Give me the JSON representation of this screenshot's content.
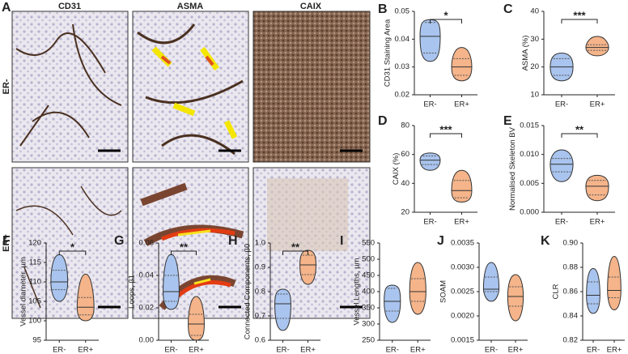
{
  "image_panel": {
    "panel": "A",
    "columns": [
      "CD31",
      "ASMA",
      "CAIX"
    ],
    "rows": [
      "ER-",
      "ER+"
    ]
  },
  "chart_data": [
    {
      "type": "violin",
      "panel": "B",
      "y_label": "CD31 Staining Area",
      "categories": [
        "ER-",
        "ER+"
      ],
      "significance": "*",
      "ylim": [
        0.02,
        0.05
      ],
      "yticks": [
        0.02,
        0.03,
        0.04,
        0.05
      ],
      "series": [
        {
          "name": "ER-",
          "color": "#a9c4ee",
          "min": 0.032,
          "q1": 0.035,
          "median": 0.041,
          "q3": 0.046,
          "max": 0.047
        },
        {
          "name": "ER+",
          "color": "#f5b48a",
          "min": 0.025,
          "q1": 0.027,
          "median": 0.03,
          "q3": 0.033,
          "max": 0.037
        }
      ]
    },
    {
      "type": "violin",
      "panel": "C",
      "y_label": "ASMA (%)",
      "categories": [
        "ER-",
        "ER+"
      ],
      "significance": "***",
      "ylim": [
        10,
        40
      ],
      "yticks": [
        10,
        20,
        30,
        40
      ],
      "series": [
        {
          "name": "ER-",
          "color": "#a9c4ee",
          "min": 15,
          "q1": 17,
          "median": 20,
          "q3": 23,
          "max": 25
        },
        {
          "name": "ER+",
          "color": "#f5b48a",
          "min": 24,
          "q1": 26,
          "median": 27,
          "q3": 28,
          "max": 31
        }
      ]
    },
    {
      "type": "violin",
      "panel": "D",
      "y_label": "CAIX (%)",
      "categories": [
        "ER-",
        "ER+"
      ],
      "significance": "***",
      "ylim": [
        20,
        80
      ],
      "yticks": [
        20,
        40,
        60,
        80
      ],
      "series": [
        {
          "name": "ER-",
          "color": "#a9c4ee",
          "min": 49,
          "q1": 53,
          "median": 56,
          "q3": 59,
          "max": 61
        },
        {
          "name": "ER+",
          "color": "#f5b48a",
          "min": 27,
          "q1": 30,
          "median": 35,
          "q3": 42,
          "max": 49
        }
      ]
    },
    {
      "type": "violin",
      "panel": "E",
      "y_label": "Normalised Skeleton BV",
      "categories": [
        "ER-",
        "ER+"
      ],
      "significance": "**",
      "ylim": [
        0,
        0.015
      ],
      "yticks": [
        {
          "value": 0,
          "label": "0.000"
        },
        0.005,
        {
          "value": 0.01,
          "label": "0.010"
        },
        0.015
      ],
      "series": [
        {
          "name": "ER-",
          "color": "#a9c4ee",
          "min": 0.0053,
          "q1": 0.007,
          "median": 0.0083,
          "q3": 0.0093,
          "max": 0.0108
        },
        {
          "name": "ER+",
          "color": "#f5b48a",
          "min": 0.002,
          "q1": 0.003,
          "median": 0.0045,
          "q3": 0.0055,
          "max": 0.0064
        }
      ]
    },
    {
      "type": "violin",
      "panel": "F",
      "y_label": "Vessel diameter, µm",
      "categories": [
        "ER-",
        "ER+"
      ],
      "significance": "*",
      "ylim": [
        95,
        120
      ],
      "yticks": [
        95,
        100,
        105,
        110,
        115,
        120
      ],
      "series": [
        {
          "name": "ER-",
          "color": "#a9c4ee",
          "min": 105,
          "q1": 108,
          "median": 110,
          "q3": 113,
          "max": 117
        },
        {
          "name": "ER+",
          "color": "#f5b48a",
          "min": 100,
          "q1": 101.5,
          "median": 103.5,
          "q3": 106,
          "max": 112
        }
      ]
    },
    {
      "type": "violin",
      "panel": "G",
      "y_label": "Loops, β1",
      "categories": [
        "ER-",
        "ER+"
      ],
      "significance": "**",
      "ylim": [
        0,
        0.06
      ],
      "yticks": [
        {
          "value": 0,
          "label": "0.00"
        },
        0.02,
        0.04,
        0.06
      ],
      "series": [
        {
          "name": "ER-",
          "color": "#a9c4ee",
          "min": 0.019,
          "q1": 0.024,
          "median": 0.03,
          "q3": 0.04,
          "max": 0.053
        },
        {
          "name": "ER+",
          "color": "#f5b48a",
          "min": 0,
          "q1": 0.003,
          "median": 0.01,
          "q3": 0.016,
          "max": 0.027
        }
      ]
    },
    {
      "type": "violin",
      "panel": "H",
      "y_label": "Connected Components, β0",
      "categories": [
        "ER-",
        "ER+"
      ],
      "significance": "**",
      "ylim": [
        0.6,
        1.0
      ],
      "yticks": [
        0.6,
        0.7,
        0.8,
        0.9,
        {
          "value": 1,
          "label": "1.0"
        }
      ],
      "series": [
        {
          "name": "ER-",
          "color": "#a9c4ee",
          "min": 0.64,
          "q1": 0.69,
          "median": 0.75,
          "q3": 0.79,
          "max": 0.81
        },
        {
          "name": "ER+",
          "color": "#f5b48a",
          "min": 0.83,
          "q1": 0.87,
          "median": 0.91,
          "q3": 0.95,
          "max": 0.97
        }
      ]
    },
    {
      "type": "violin",
      "panel": "I",
      "y_label": "Vessel Lengths, µm",
      "categories": [
        "ER-",
        "ER+"
      ],
      "ylim": [
        250,
        550
      ],
      "yticks": [
        250,
        300,
        350,
        400,
        450,
        500,
        550
      ],
      "series": [
        {
          "name": "ER-",
          "color": "#a9c4ee",
          "min": 305,
          "q1": 340,
          "median": 370,
          "q3": 410,
          "max": 420
        },
        {
          "name": "ER+",
          "color": "#f5b48a",
          "min": 330,
          "q1": 370,
          "median": 400,
          "q3": 440,
          "max": 490
        }
      ]
    },
    {
      "type": "violin",
      "panel": "J",
      "y_label": "SOAM",
      "categories": [
        "ER-",
        "ER+"
      ],
      "ylim": [
        0.0015,
        0.0035
      ],
      "yticks": [
        0.0015,
        {
          "value": 0.002,
          "label": "0.0020"
        },
        0.0025,
        {
          "value": 0.003,
          "label": "0.0030"
        },
        0.0035
      ],
      "series": [
        {
          "name": "ER-",
          "color": "#a9c4ee",
          "min": 0.0023,
          "q1": 0.0025,
          "median": 0.00255,
          "q3": 0.0028,
          "max": 0.0031
        },
        {
          "name": "ER+",
          "color": "#f5b48a",
          "min": 0.0019,
          "q1": 0.0022,
          "median": 0.0024,
          "q3": 0.0026,
          "max": 0.00285
        }
      ]
    },
    {
      "type": "violin",
      "panel": "K",
      "y_label": "CLR",
      "categories": [
        "ER-",
        "ER+"
      ],
      "ylim": [
        0.82,
        0.9
      ],
      "yticks": [
        0.82,
        0.84,
        0.86,
        0.88,
        {
          "value": 0.9,
          "label": "0.90"
        }
      ],
      "series": [
        {
          "name": "ER-",
          "color": "#a9c4ee",
          "min": 0.842,
          "q1": 0.85,
          "median": 0.857,
          "q3": 0.868,
          "max": 0.879
        },
        {
          "name": "ER+",
          "color": "#f5b48a",
          "min": 0.845,
          "q1": 0.855,
          "median": 0.861,
          "q3": 0.872,
          "max": 0.889
        }
      ]
    }
  ]
}
